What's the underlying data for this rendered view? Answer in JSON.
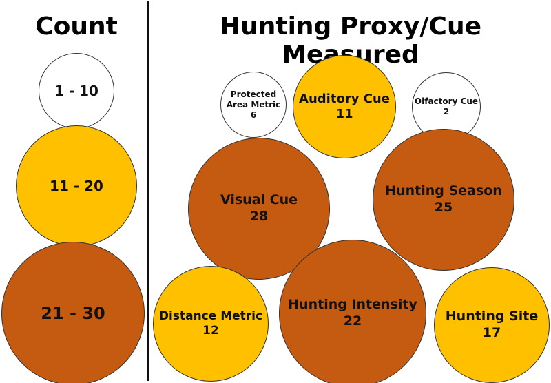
{
  "legend": {
    "title": "Count",
    "items": [
      {
        "label": "1 - 10",
        "color": "#ffffff"
      },
      {
        "label": "11 - 20",
        "color": "#ffc000"
      },
      {
        "label": "21 - 30",
        "color": "#c55a11"
      }
    ]
  },
  "title": "Hunting Proxy/Cue Measured",
  "nodes": [
    {
      "label": "Protected Area Metric",
      "value": 6,
      "color": "#ffffff"
    },
    {
      "label": "Auditory Cue",
      "value": 11,
      "color": "#ffc000"
    },
    {
      "label": "Olfactory Cue",
      "value": 2,
      "color": "#ffffff"
    },
    {
      "label": "Visual Cue",
      "value": 28,
      "color": "#c55a11"
    },
    {
      "label": "Hunting Season",
      "value": 25,
      "color": "#c55a11"
    },
    {
      "label": "Distance Metric",
      "value": 12,
      "color": "#ffc000"
    },
    {
      "label": "Hunting Intensity",
      "value": 22,
      "color": "#c55a11"
    },
    {
      "label": "Hunting Site",
      "value": 17,
      "color": "#ffc000"
    }
  ]
}
